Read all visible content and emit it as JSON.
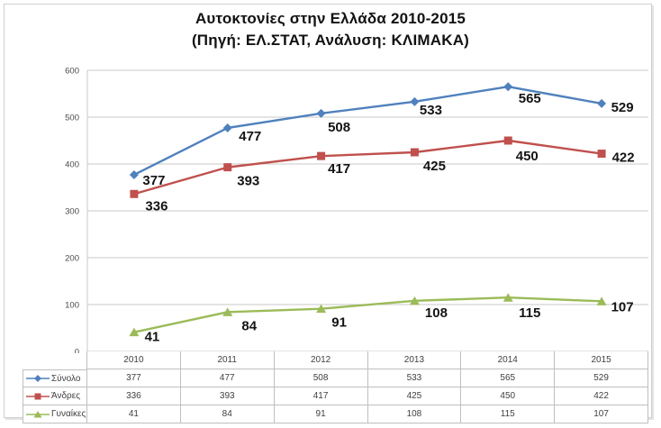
{
  "title": {
    "line1": "Αυτοκτονίες στην Ελλάδα 2010-2015",
    "line2": "(Πηγή: ΕΛ.ΣΤΑΤ, Ανάλυση: ΚΛΙΜΑΚΑ)"
  },
  "chart_data": {
    "type": "line",
    "title": "Αυτοκτονίες στην Ελλάδα 2010-2015 (Πηγή: ΕΛ.ΣΤΑΤ, Ανάλυση: ΚΛΙΜΑΚΑ)",
    "categories": [
      "2010",
      "2011",
      "2012",
      "2013",
      "2014",
      "2015"
    ],
    "series": [
      {
        "name": "Σύνολο",
        "values": [
          377,
          477,
          508,
          533,
          565,
          529
        ],
        "color": "#4F81BD",
        "marker": "diamond"
      },
      {
        "name": "Άνδρες",
        "values": [
          336,
          393,
          417,
          425,
          450,
          422
        ],
        "color": "#C0504D",
        "marker": "square"
      },
      {
        "name": "Γυναίκες",
        "values": [
          41,
          84,
          91,
          108,
          115,
          107
        ],
        "color": "#9BBB59",
        "marker": "triangle"
      }
    ],
    "xlabel": "",
    "ylabel": "",
    "ylim": [
      0,
      600
    ],
    "ytick_step": 100,
    "yticks": [
      0,
      100,
      200,
      300,
      400,
      500,
      600
    ],
    "grid": true,
    "legend_position": "data-table-left",
    "data_labels": true,
    "colors": {
      "gridline": "#c9c9c9",
      "axis_text": "#4a4a4a",
      "data_label": "#141414",
      "table_border": "#bfbfbf",
      "table_text": "#3f3f3f"
    }
  }
}
